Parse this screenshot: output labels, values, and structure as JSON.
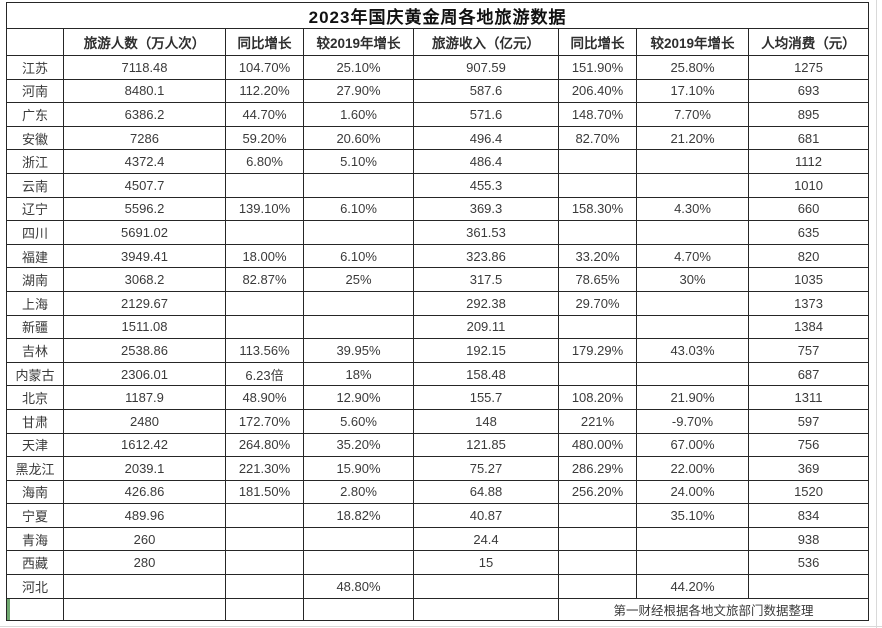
{
  "chart_data": {
    "type": "table",
    "title": "2023年国庆黄金周各地旅游数据",
    "columns": [
      "",
      "旅游人数（万人次）",
      "同比增长",
      "较2019年增长",
      "旅游收入（亿元）",
      "同比增长",
      "较2019年增长",
      "人均消费（元）"
    ],
    "rows": [
      [
        "江苏",
        "7118.48",
        "104.70%",
        "25.10%",
        "907.59",
        "151.90%",
        "25.80%",
        "1275"
      ],
      [
        "河南",
        "8480.1",
        "112.20%",
        "27.90%",
        "587.6",
        "206.40%",
        "17.10%",
        "693"
      ],
      [
        "广东",
        "6386.2",
        "44.70%",
        "1.60%",
        "571.6",
        "148.70%",
        "7.70%",
        "895"
      ],
      [
        "安徽",
        "7286",
        "59.20%",
        "20.60%",
        "496.4",
        "82.70%",
        "21.20%",
        "681"
      ],
      [
        "浙江",
        "4372.4",
        "6.80%",
        "5.10%",
        "486.4",
        "",
        "",
        "1112"
      ],
      [
        "云南",
        "4507.7",
        "",
        "",
        "455.3",
        "",
        "",
        "1010"
      ],
      [
        "辽宁",
        "5596.2",
        "139.10%",
        "6.10%",
        "369.3",
        "158.30%",
        "4.30%",
        "660"
      ],
      [
        "四川",
        "5691.02",
        "",
        "",
        "361.53",
        "",
        "",
        "635"
      ],
      [
        "福建",
        "3949.41",
        "18.00%",
        "6.10%",
        "323.86",
        "33.20%",
        "4.70%",
        "820"
      ],
      [
        "湖南",
        "3068.2",
        "82.87%",
        "25%",
        "317.5",
        "78.65%",
        "30%",
        "1035"
      ],
      [
        "上海",
        "2129.67",
        "",
        "",
        "292.38",
        "29.70%",
        "",
        "1373"
      ],
      [
        "新疆",
        "1511.08",
        "",
        "",
        "209.11",
        "",
        "",
        "1384"
      ],
      [
        "吉林",
        "2538.86",
        "113.56%",
        "39.95%",
        "192.15",
        "179.29%",
        "43.03%",
        "757"
      ],
      [
        "内蒙古",
        "2306.01",
        "6.23倍",
        "18%",
        "158.48",
        "",
        "",
        "687"
      ],
      [
        "北京",
        "1187.9",
        "48.90%",
        "12.90%",
        "155.7",
        "108.20%",
        "21.90%",
        "1311"
      ],
      [
        "甘肃",
        "2480",
        "172.70%",
        "5.60%",
        "148",
        "221%",
        "-9.70%",
        "597"
      ],
      [
        "天津",
        "1612.42",
        "264.80%",
        "35.20%",
        "121.85",
        "480.00%",
        "67.00%",
        "756"
      ],
      [
        "黑龙江",
        "2039.1",
        "221.30%",
        "15.90%",
        "75.27",
        "286.29%",
        "22.00%",
        "369"
      ],
      [
        "海南",
        "426.86",
        "181.50%",
        "2.80%",
        "64.88",
        "256.20%",
        "24.00%",
        "1520"
      ],
      [
        "宁夏",
        "489.96",
        "",
        "18.82%",
        "40.87",
        "",
        "35.10%",
        "834"
      ],
      [
        "青海",
        "260",
        "",
        "",
        "24.4",
        "",
        "",
        "938"
      ],
      [
        "西藏",
        "280",
        "",
        "",
        "15",
        "",
        "",
        "536"
      ],
      [
        "河北",
        "",
        "",
        "48.80%",
        "",
        "",
        "44.20%",
        ""
      ]
    ],
    "footer_note": "第一财经根据各地文旅部门数据整理"
  },
  "colors": {
    "table_border": "#262626",
    "text": "#3a3a3a",
    "title_text": "#111111",
    "active_cell_green": "#6fa86f",
    "gridline": "#d9d9d9"
  }
}
